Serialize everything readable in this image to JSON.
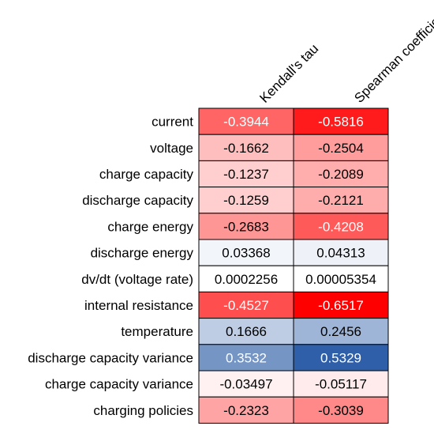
{
  "chart_data": {
    "type": "heatmap",
    "title": "",
    "columns": [
      "Kendall's tau",
      "Spearman coefficient"
    ],
    "rows": [
      "current",
      "voltage",
      "charge capacity",
      "discharge capacity",
      "charge energy",
      "discharge energy",
      "dv/dt (voltage rate)",
      "internal resistance",
      "temperature",
      "discharge capacity variance",
      "charge capacity variance",
      "charging policies"
    ],
    "values": [
      [
        -0.3944,
        -0.5816
      ],
      [
        -0.1662,
        -0.2504
      ],
      [
        -0.1237,
        -0.2089
      ],
      [
        -0.1259,
        -0.2121
      ],
      [
        -0.2683,
        -0.4208
      ],
      [
        0.03368,
        0.04313
      ],
      [
        0.0002256,
        5.354e-05
      ],
      [
        -0.4527,
        -0.6517
      ],
      [
        0.1666,
        0.2456
      ],
      [
        0.3532,
        0.5329
      ],
      [
        -0.03497,
        -0.05117
      ],
      [
        -0.2323,
        -0.3039
      ]
    ],
    "labels": [
      [
        "-0.3944",
        "-0.5816"
      ],
      [
        "-0.1662",
        "-0.2504"
      ],
      [
        "-0.1237",
        "-0.2089"
      ],
      [
        "-0.1259",
        "-0.2121"
      ],
      [
        "-0.2683",
        "-0.4208"
      ],
      [
        "0.03368",
        "0.04313"
      ],
      [
        "0.0002256",
        "0.00005354"
      ],
      [
        "-0.4527",
        "-0.6517"
      ],
      [
        "0.1666",
        "0.2456"
      ],
      [
        "0.3532",
        "0.5329"
      ],
      [
        "-0.03497",
        "-0.05117"
      ],
      [
        "-0.2323",
        "-0.3039"
      ]
    ],
    "color_scale": {
      "negative": "#ff0000",
      "neutral": "#ffffff",
      "positive": "#2f5fa8",
      "min": -0.6517,
      "max": 0.5329
    },
    "legend": "none",
    "grid": true
  }
}
